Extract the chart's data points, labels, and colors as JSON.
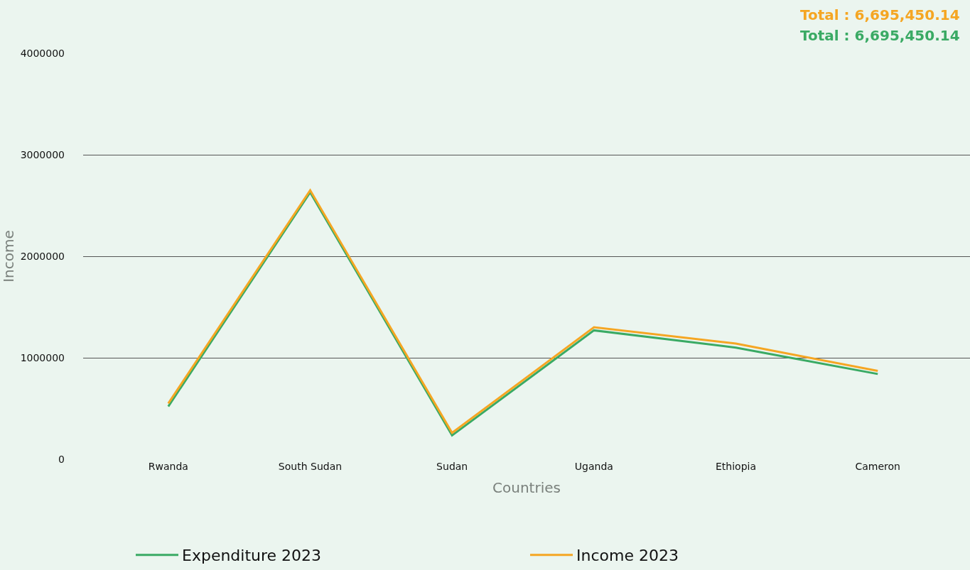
{
  "chart_data": {
    "type": "line",
    "xlabel": "Countries",
    "ylabel": "Income",
    "categories": [
      "Rwanda",
      "South Sudan",
      "Sudan",
      "Uganda",
      "Ethiopia",
      "Cameron"
    ],
    "series": [
      {
        "name": "Expenditure 2023",
        "color": "#3aaa64",
        "values": [
          520000,
          2630000,
          235000,
          1270000,
          1100000,
          840000
        ]
      },
      {
        "name": "Income 2023",
        "color": "#f5a623",
        "values": [
          550000,
          2650000,
          260000,
          1300000,
          1140000,
          870000
        ]
      }
    ],
    "annotations": [
      "Total : 6,695,450.14",
      "Total : 6,695,450.14"
    ],
    "ylim": [
      0,
      4000000
    ],
    "yticks": [
      0,
      1000000,
      2000000,
      3000000,
      4000000
    ],
    "grid": "y",
    "legend": "bottom",
    "marker": "none",
    "line_style": "solid"
  }
}
